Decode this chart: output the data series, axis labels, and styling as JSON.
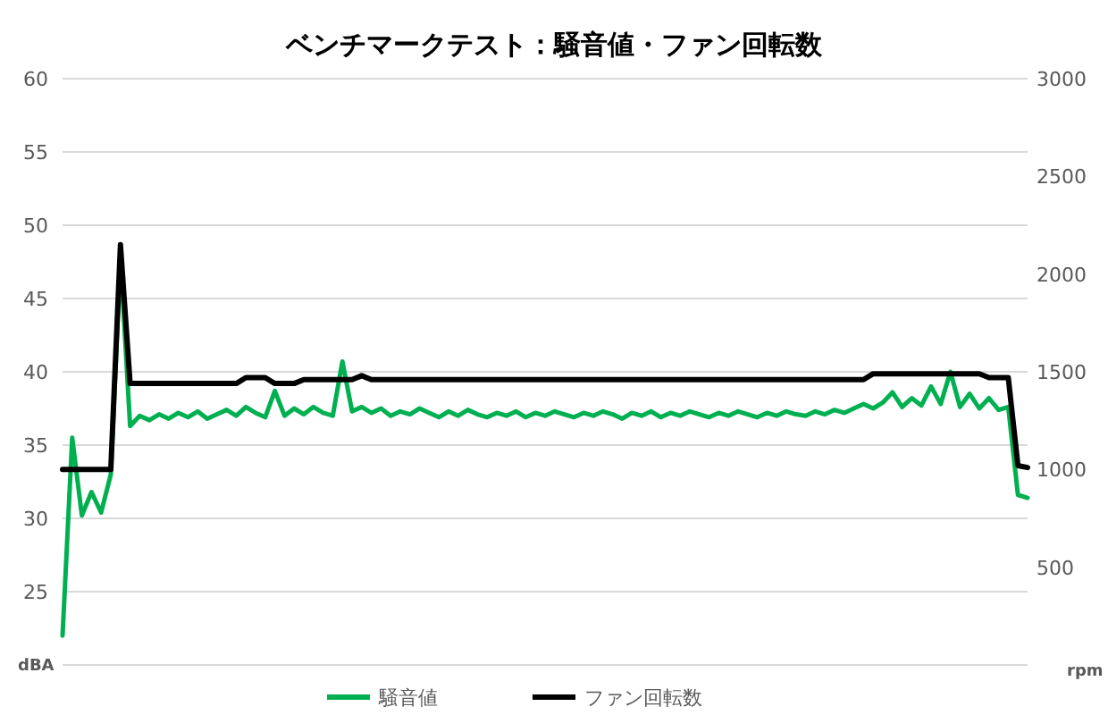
{
  "chart_data": {
    "type": "line",
    "title": "ベンチマークテスト：騒音値・ファン回転数",
    "ylabel": "dBA",
    "y2label": "rpm",
    "categories": [
      null,
      null,
      null,
      null,
      null,
      null,
      null,
      null,
      null,
      null,
      null,
      null,
      null,
      null,
      null,
      null,
      null,
      null,
      null,
      null,
      null,
      null,
      null,
      null,
      null,
      null,
      null,
      null,
      null,
      null,
      null,
      null,
      null,
      null,
      null,
      null,
      null,
      null,
      null,
      null,
      null,
      null,
      null,
      null,
      null,
      null,
      null,
      null,
      null,
      null,
      null,
      null,
      null,
      null,
      null,
      null,
      null,
      null,
      null,
      null,
      null,
      null,
      null,
      null,
      null,
      null,
      null,
      null,
      null,
      null,
      null,
      null,
      null,
      null,
      null,
      null,
      null,
      null,
      null,
      null,
      null,
      null,
      null,
      null,
      null,
      null,
      null,
      null,
      null,
      null,
      null,
      null,
      null,
      null,
      null,
      null,
      null,
      null,
      null,
      null,
      null
    ],
    "series": [
      {
        "name": "騒音値",
        "color": "#00b050",
        "values": [
          22,
          35.5,
          30.2,
          31.8,
          30.4,
          33,
          47.8,
          36.3,
          37.0,
          36.7,
          37.1,
          36.8,
          37.2,
          36.9,
          37.3,
          36.8,
          37.1,
          37.4,
          37.0,
          37.6,
          37.2,
          36.9,
          38.7,
          37.0,
          37.5,
          37.1,
          37.6,
          37.2,
          37.0,
          40.7,
          37.3,
          37.6,
          37.2,
          37.5,
          37.0,
          37.3,
          37.1,
          37.5,
          37.2,
          36.9,
          37.3,
          37.0,
          37.4,
          37.1,
          36.9,
          37.2,
          37.0,
          37.3,
          36.9,
          37.2,
          37.0,
          37.3,
          37.1,
          36.9,
          37.2,
          37.0,
          37.3,
          37.1,
          36.8,
          37.2,
          37.0,
          37.3,
          36.9,
          37.2,
          37.0,
          37.3,
          37.1,
          36.9,
          37.2,
          37.0,
          37.3,
          37.1,
          36.9,
          37.2,
          37.0,
          37.3,
          37.1,
          37.0,
          37.3,
          37.1,
          37.4,
          37.2,
          37.5,
          37.8,
          37.5,
          37.9,
          38.6,
          37.6,
          38.2,
          37.7,
          39.0,
          37.8,
          40.0,
          37.6,
          38.5,
          37.5,
          38.2,
          37.4,
          37.6,
          31.6,
          31.4
        ]
      },
      {
        "name": "ファン回転数",
        "color": "#000000",
        "axis": "y2",
        "values": [
          1000,
          1000,
          1000,
          1000,
          1000,
          1000,
          2150,
          1440,
          1440,
          1440,
          1440,
          1440,
          1440,
          1440,
          1440,
          1440,
          1440,
          1440,
          1440,
          1470,
          1470,
          1470,
          1440,
          1440,
          1440,
          1460,
          1460,
          1460,
          1460,
          1460,
          1460,
          1480,
          1460,
          1460,
          1460,
          1460,
          1460,
          1460,
          1460,
          1460,
          1460,
          1460,
          1460,
          1460,
          1460,
          1460,
          1460,
          1460,
          1460,
          1460,
          1460,
          1460,
          1460,
          1460,
          1460,
          1460,
          1460,
          1460,
          1460,
          1460,
          1460,
          1460,
          1460,
          1460,
          1460,
          1460,
          1460,
          1460,
          1460,
          1460,
          1460,
          1460,
          1460,
          1460,
          1460,
          1460,
          1460,
          1460,
          1460,
          1460,
          1460,
          1460,
          1460,
          1460,
          1490,
          1490,
          1490,
          1490,
          1490,
          1490,
          1490,
          1490,
          1490,
          1490,
          1490,
          1490,
          1470,
          1470,
          1470,
          1020,
          1010
        ]
      }
    ],
    "ylim": [
      20,
      60
    ],
    "yticks": [
      25,
      30,
      35,
      40,
      45,
      50,
      55,
      60
    ],
    "y2lim": [
      0,
      3000
    ],
    "y2ticks": [
      500,
      1000,
      1500,
      2000,
      2500,
      3000
    ],
    "grid": "y",
    "legend": "bottom"
  }
}
